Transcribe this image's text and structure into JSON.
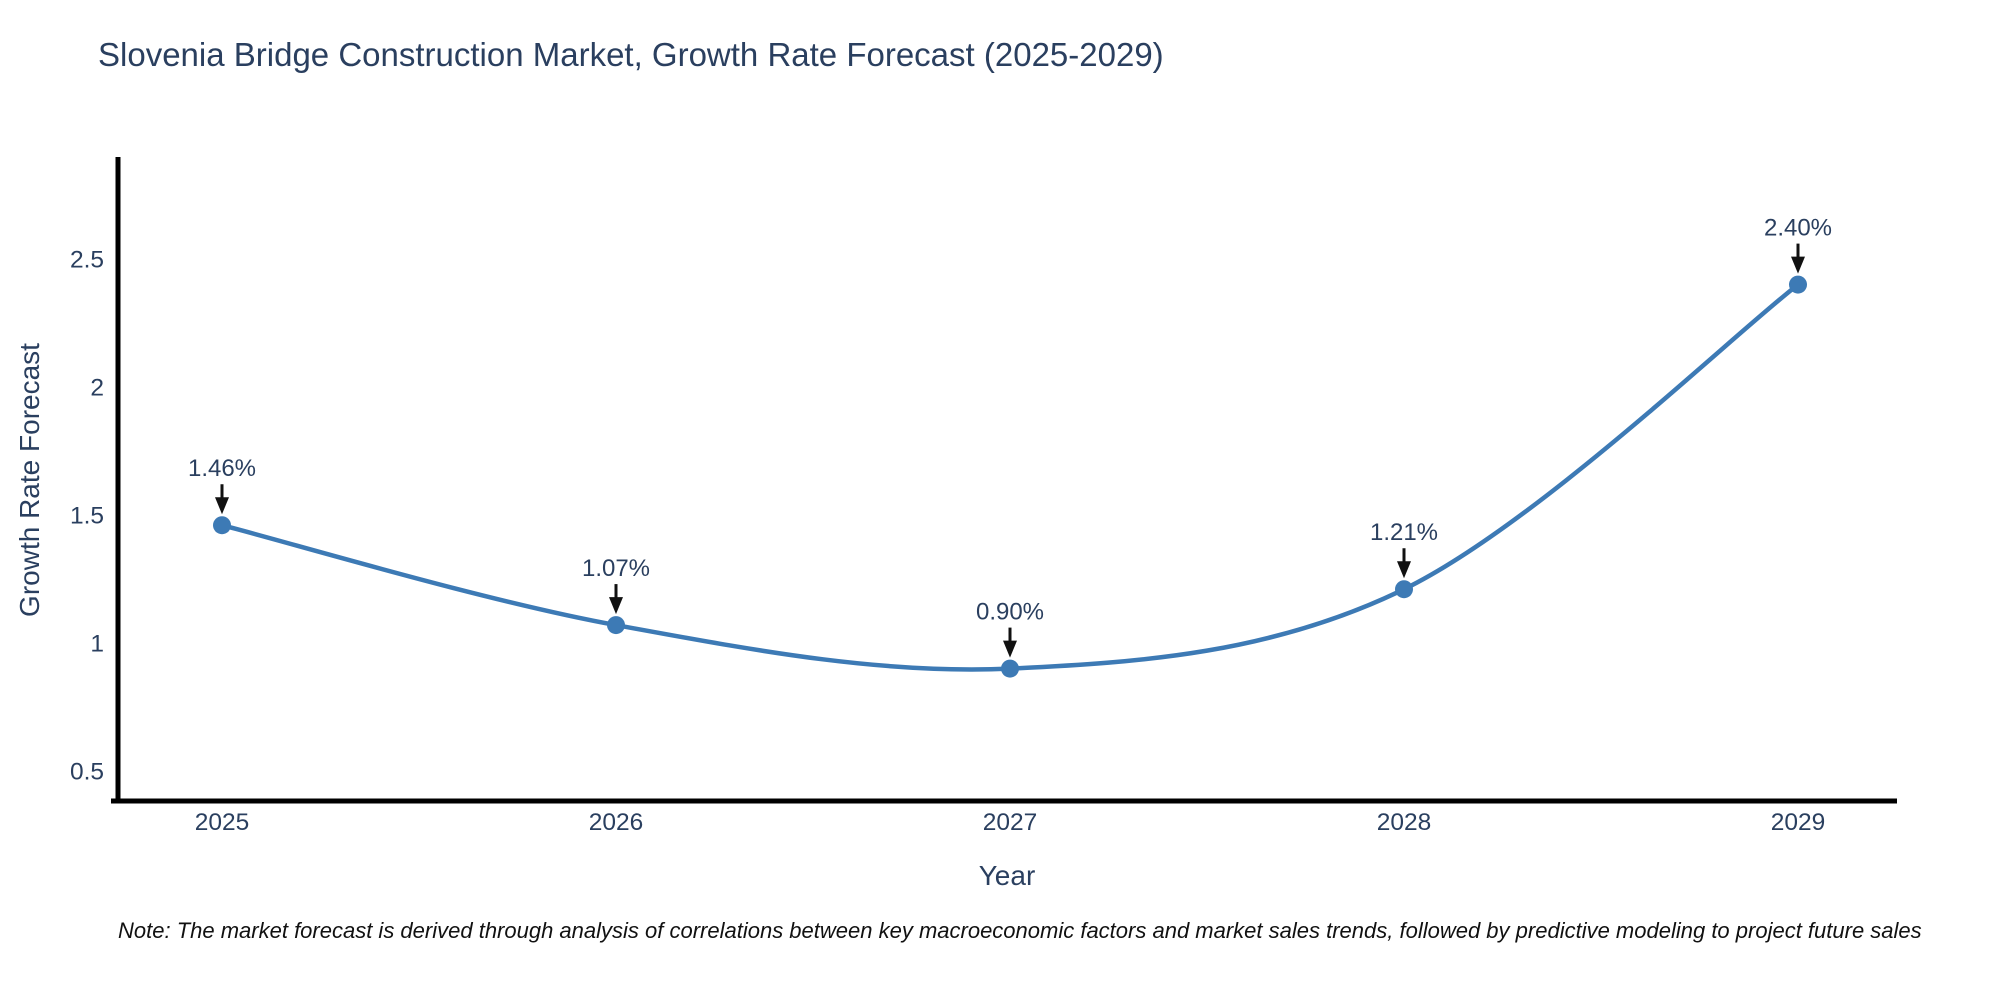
{
  "title": "Slovenia Bridge Construction Market, Growth Rate Forecast (2025-2029)",
  "note": "Note: The market forecast is derived through analysis of correlations between key macroeconomic factors and market sales trends, followed by predictive modeling to project future sales",
  "chart_data": {
    "type": "line",
    "line_shape": "spline",
    "title": "Slovenia Bridge Construction Market, Growth Rate Forecast (2025-2029)",
    "xlabel": "Year",
    "ylabel": "Growth Rate Forecast",
    "x": [
      2025,
      2026,
      2027,
      2028,
      2029
    ],
    "values": [
      1.46,
      1.07,
      0.9,
      1.21,
      2.4
    ],
    "point_labels": [
      "1.46%",
      "1.07%",
      "0.90%",
      "1.21%",
      "2.40%"
    ],
    "xtick_labels": [
      "2025",
      "2026",
      "2027",
      "2028",
      "2029"
    ],
    "ytick_values": [
      0.5,
      1,
      1.5,
      2,
      2.5
    ],
    "ytick_labels": [
      "0.5",
      "1",
      "1.5",
      "2",
      "2.5"
    ],
    "ylim": [
      0.38,
      2.9
    ],
    "grid": false,
    "legend": "none",
    "line_color": "#3d7ab5",
    "marker_color": "#3d7ab5",
    "axis_color": "#000000",
    "text_color": "#2a3f5f",
    "annotation_arrow_color": "#111111"
  }
}
